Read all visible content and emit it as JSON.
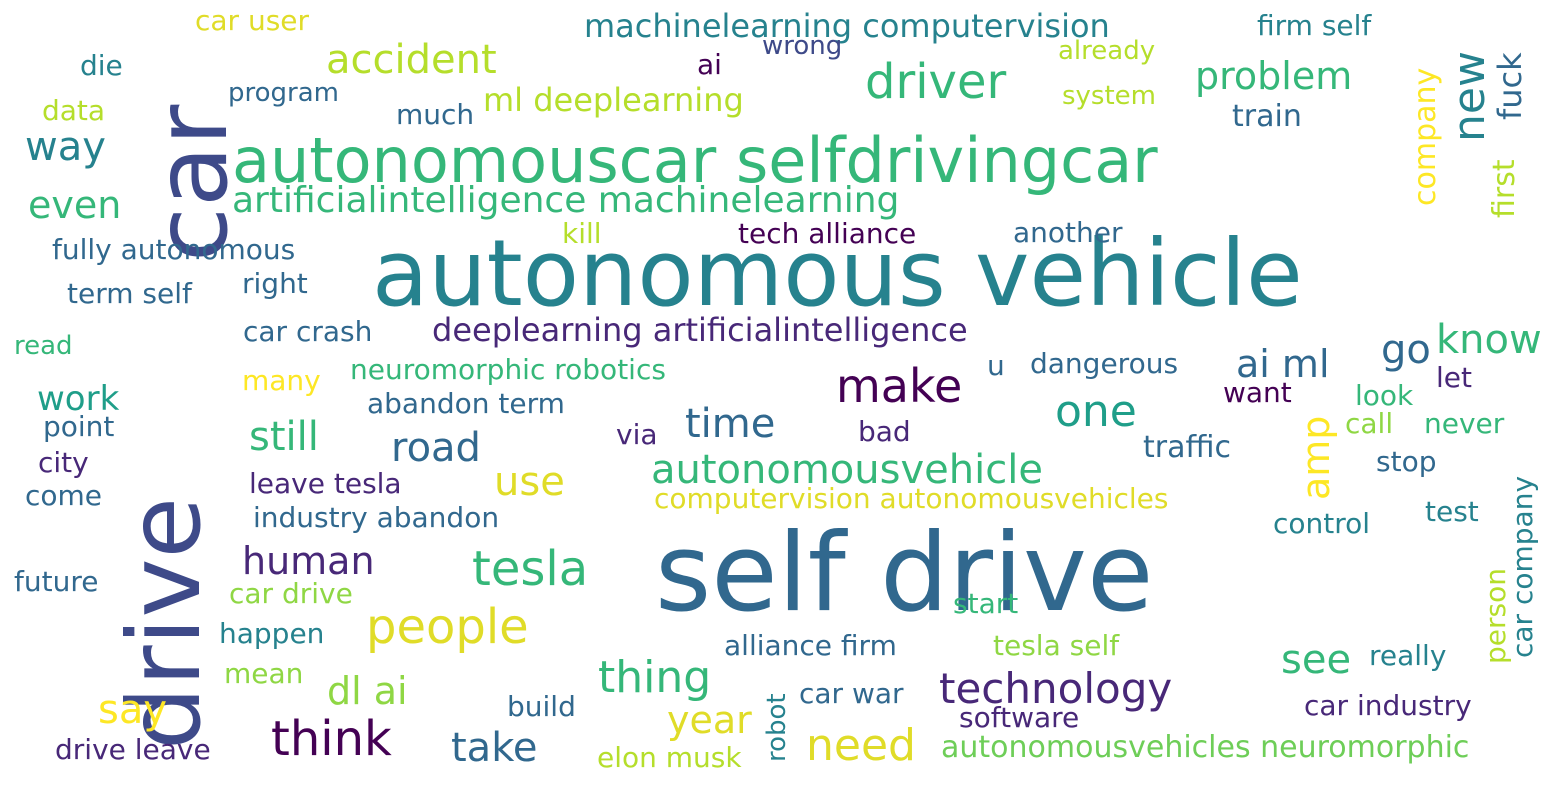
{
  "words": [
    {
      "text": "self drive",
      "color": "#31688e"
    },
    {
      "text": "autonomous vehicle",
      "color": "#26828e"
    },
    {
      "text": "drive",
      "color": "#3e4a89"
    },
    {
      "text": "car",
      "color": "#3e4a89"
    },
    {
      "text": "autonomouscar selfdrivingcar",
      "color": "#35b779"
    },
    {
      "text": "artificialintelligence machinelearning",
      "color": "#35b779"
    },
    {
      "text": "driver",
      "color": "#35b779"
    },
    {
      "text": "accident",
      "color": "#b5de2b"
    },
    {
      "text": "problem",
      "color": "#35b779"
    },
    {
      "text": "machinelearning computervision",
      "color": "#26828e"
    },
    {
      "text": "firm self",
      "color": "#26828e"
    },
    {
      "text": "car user",
      "color": "#e0dc28"
    },
    {
      "text": "die",
      "color": "#26828e"
    },
    {
      "text": "wrong",
      "color": "#3e4a89"
    },
    {
      "text": "already",
      "color": "#b5de2b"
    },
    {
      "text": "ai",
      "color": "#440154"
    },
    {
      "text": "program",
      "color": "#31688e"
    },
    {
      "text": "system",
      "color": "#b5de2b"
    },
    {
      "text": "ml deeplearning",
      "color": "#b5de2b"
    },
    {
      "text": "data",
      "color": "#b5de2b"
    },
    {
      "text": "much",
      "color": "#31688e"
    },
    {
      "text": "train",
      "color": "#31688e"
    },
    {
      "text": "way",
      "color": "#26828e"
    },
    {
      "text": "new",
      "color": "#26828e"
    },
    {
      "text": "fuck",
      "color": "#31688e"
    },
    {
      "text": "company",
      "color": "#fde725"
    },
    {
      "text": "first",
      "color": "#b5de2b"
    },
    {
      "text": "even",
      "color": "#35b779"
    },
    {
      "text": "kill",
      "color": "#b5de2b"
    },
    {
      "text": "tech alliance",
      "color": "#440154"
    },
    {
      "text": "another",
      "color": "#31688e"
    },
    {
      "text": "fully autonomous",
      "color": "#31688e"
    },
    {
      "text": "term self",
      "color": "#31688e"
    },
    {
      "text": "right",
      "color": "#31688e"
    },
    {
      "text": "car crash",
      "color": "#31688e"
    },
    {
      "text": "deeplearning artificialintelligence",
      "color": "#482878"
    },
    {
      "text": "read",
      "color": "#35b779"
    },
    {
      "text": "go",
      "color": "#31688e"
    },
    {
      "text": "know",
      "color": "#35b779"
    },
    {
      "text": "ai ml",
      "color": "#31688e"
    },
    {
      "text": "make",
      "color": "#440154"
    },
    {
      "text": "one",
      "color": "#1f9e89"
    },
    {
      "text": "many",
      "color": "#fde725"
    },
    {
      "text": "neuromorphic robotics",
      "color": "#35b779"
    },
    {
      "text": "u",
      "color": "#31688e"
    },
    {
      "text": "dangerous",
      "color": "#31688e"
    },
    {
      "text": "let",
      "color": "#482878"
    },
    {
      "text": "work",
      "color": "#1f9e89"
    },
    {
      "text": "abandon term",
      "color": "#31688e"
    },
    {
      "text": "want",
      "color": "#440154"
    },
    {
      "text": "look",
      "color": "#35b779"
    },
    {
      "text": "point",
      "color": "#31688e"
    },
    {
      "text": "still",
      "color": "#35b779"
    },
    {
      "text": "road",
      "color": "#31688e"
    },
    {
      "text": "time",
      "color": "#31688e"
    },
    {
      "text": "via",
      "color": "#482878"
    },
    {
      "text": "bad",
      "color": "#482878"
    },
    {
      "text": "amp",
      "color": "#fde725"
    },
    {
      "text": "call",
      "color": "#8fd744"
    },
    {
      "text": "never",
      "color": "#35b779"
    },
    {
      "text": "city",
      "color": "#482878"
    },
    {
      "text": "traffic",
      "color": "#31688e"
    },
    {
      "text": "autonomousvehicle",
      "color": "#35b779"
    },
    {
      "text": "use",
      "color": "#e0dc28"
    },
    {
      "text": "stop",
      "color": "#31688e"
    },
    {
      "text": "come",
      "color": "#31688e"
    },
    {
      "text": "leave tesla",
      "color": "#482878"
    },
    {
      "text": "computervision autonomousvehicles",
      "color": "#e0dc28"
    },
    {
      "text": "industry abandon",
      "color": "#31688e"
    },
    {
      "text": "test",
      "color": "#26828e"
    },
    {
      "text": "car company",
      "color": "#26828e"
    },
    {
      "text": "control",
      "color": "#26828e"
    },
    {
      "text": "human",
      "color": "#482878"
    },
    {
      "text": "tesla",
      "color": "#35b779"
    },
    {
      "text": "future",
      "color": "#31688e"
    },
    {
      "text": "car drive",
      "color": "#8fd744"
    },
    {
      "text": "people",
      "color": "#e0dc28"
    },
    {
      "text": "start",
      "color": "#35b779"
    },
    {
      "text": "person",
      "color": "#b5de2b"
    },
    {
      "text": "happen",
      "color": "#26828e"
    },
    {
      "text": "alliance firm",
      "color": "#31688e"
    },
    {
      "text": "tesla self",
      "color": "#8fd744"
    },
    {
      "text": "see",
      "color": "#35b779"
    },
    {
      "text": "really",
      "color": "#26828e"
    },
    {
      "text": "mean",
      "color": "#8fd744"
    },
    {
      "text": "thing",
      "color": "#35b779"
    },
    {
      "text": "dl ai",
      "color": "#8fd744"
    },
    {
      "text": "technology",
      "color": "#482878"
    },
    {
      "text": "robot",
      "color": "#26828e"
    },
    {
      "text": "car war",
      "color": "#31688e"
    },
    {
      "text": "say",
      "color": "#fde725"
    },
    {
      "text": "think",
      "color": "#440154"
    },
    {
      "text": "take",
      "color": "#31688e"
    },
    {
      "text": "year",
      "color": "#e0dc28"
    },
    {
      "text": "build",
      "color": "#31688e"
    },
    {
      "text": "software",
      "color": "#482878"
    },
    {
      "text": "car industry",
      "color": "#482878"
    },
    {
      "text": "need",
      "color": "#e0dc28"
    },
    {
      "text": "drive leave",
      "color": "#482878"
    },
    {
      "text": "elon musk",
      "color": "#b5de2b"
    },
    {
      "text": "autonomousvehicles neuromorphic",
      "color": "#6ece58"
    }
  ]
}
